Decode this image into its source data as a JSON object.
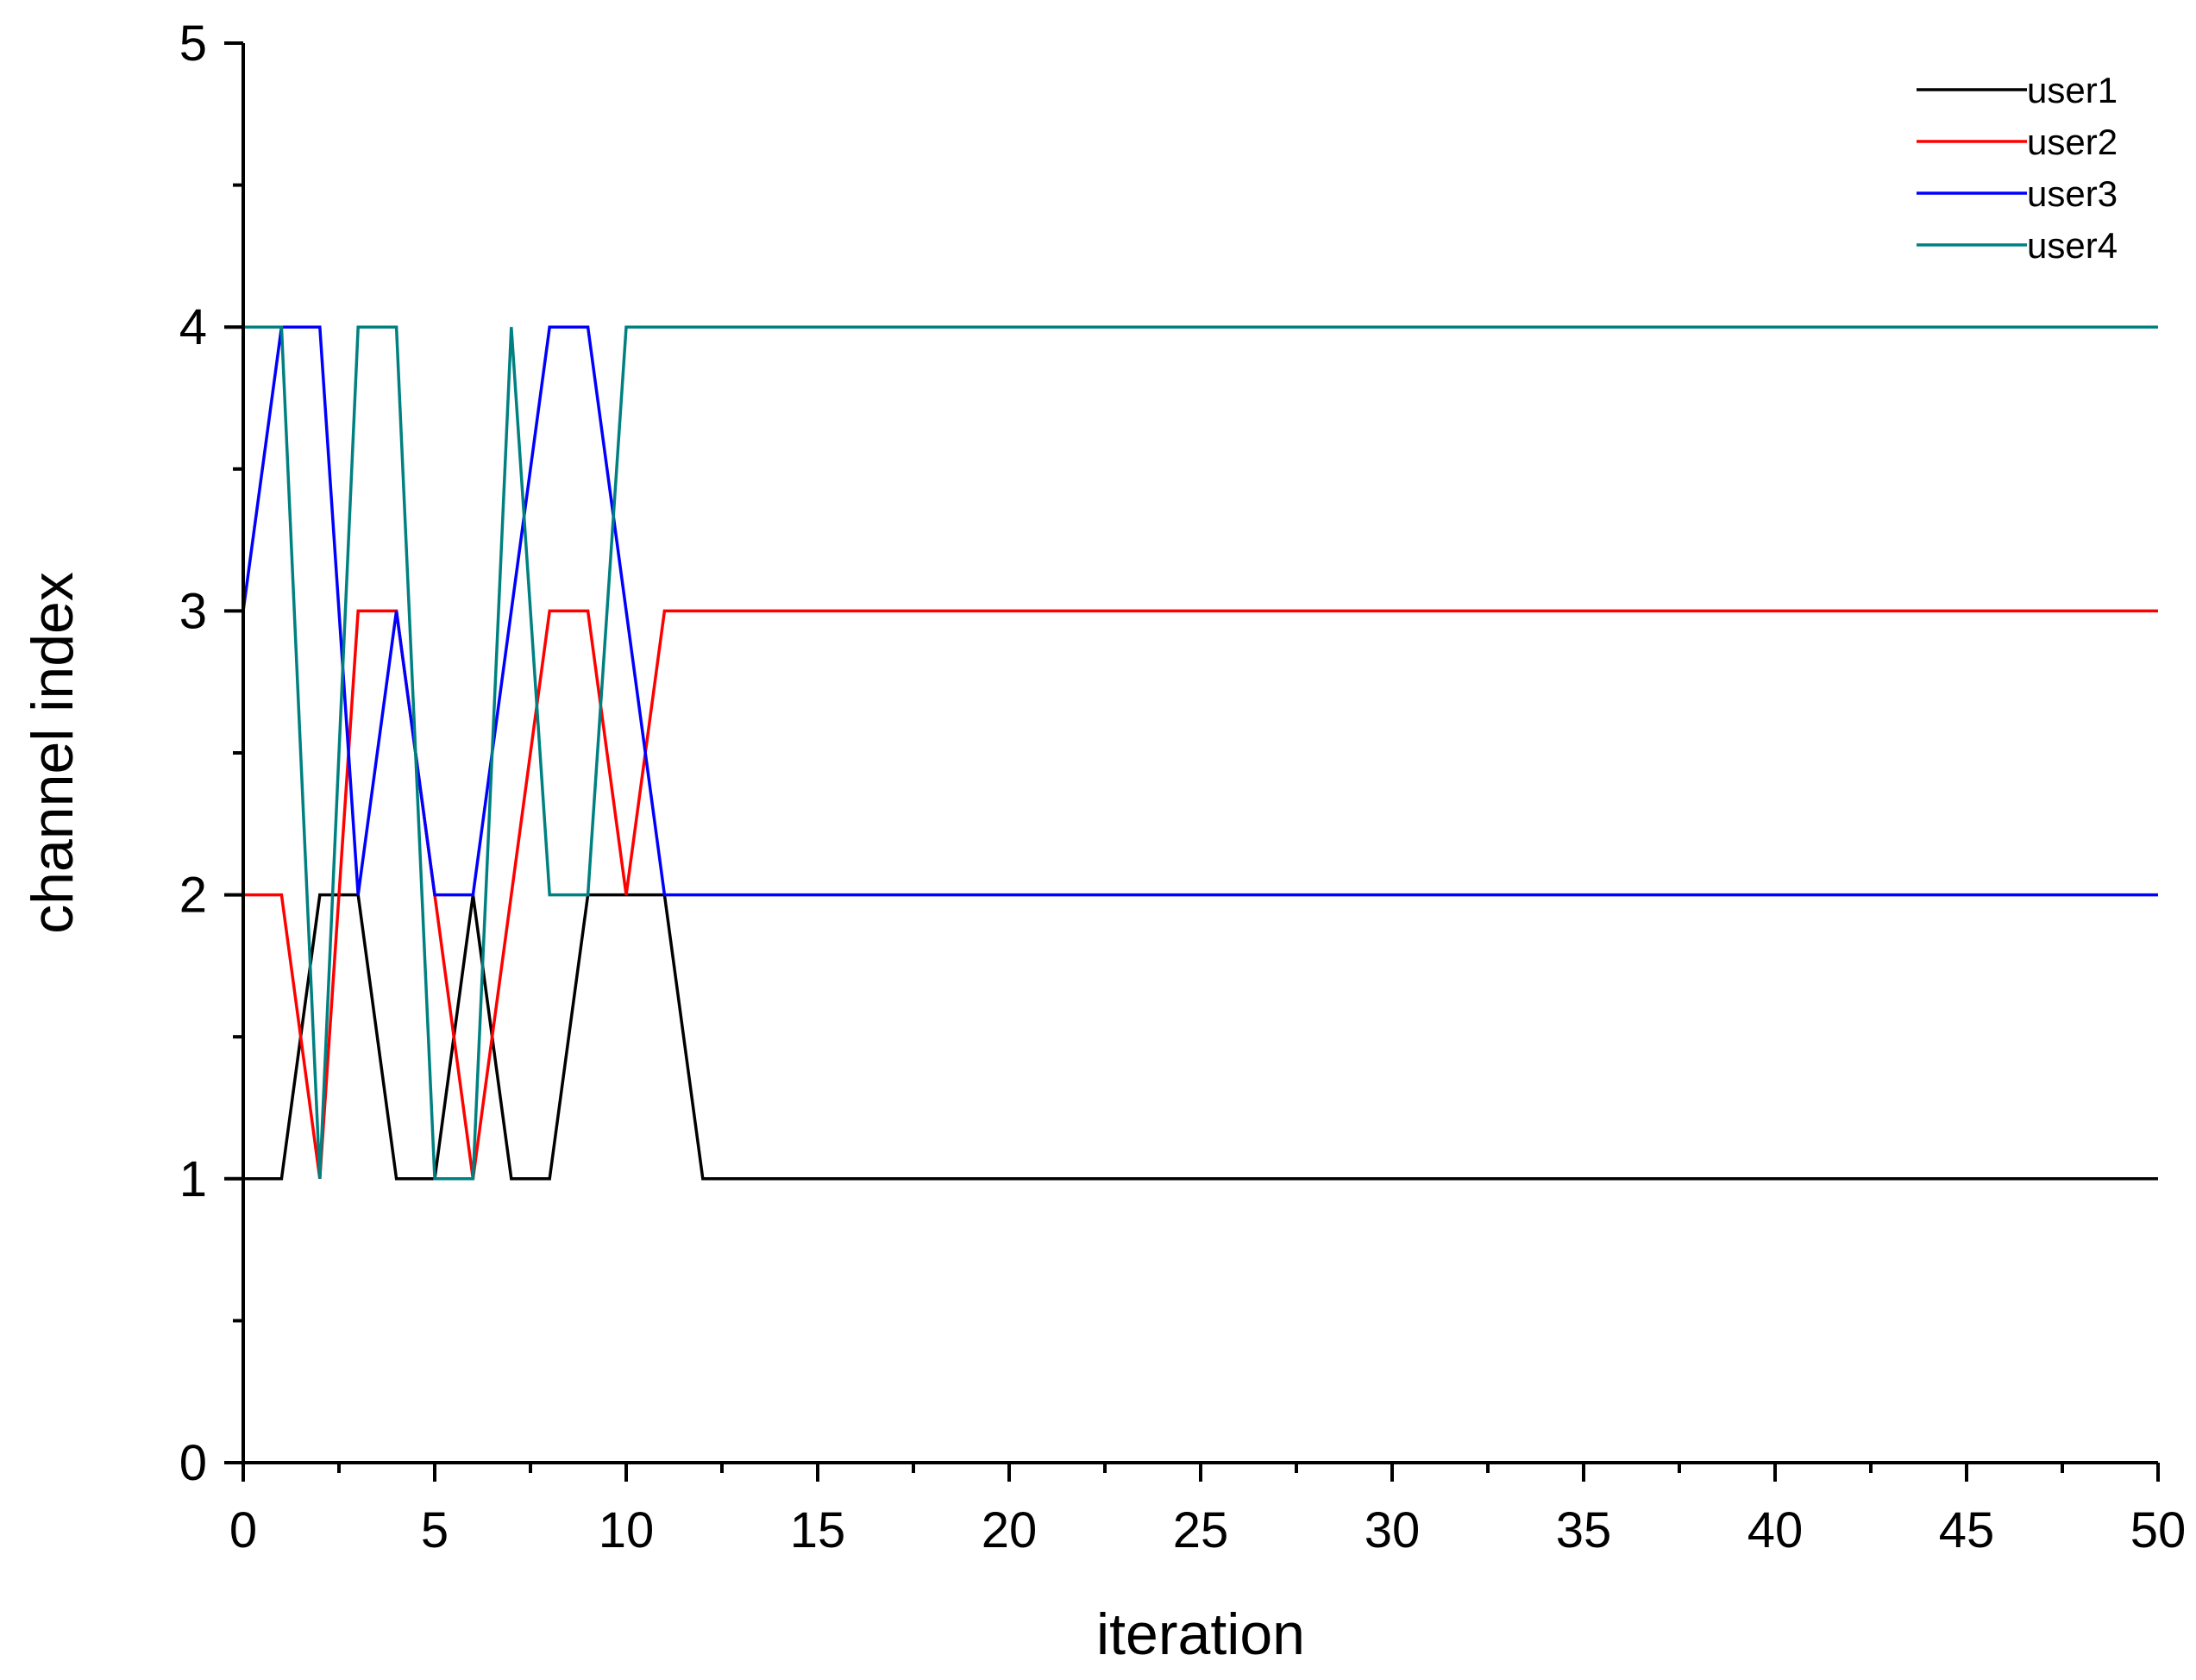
{
  "chart_data": {
    "type": "line",
    "xlabel": "iteration",
    "ylabel": "channel index",
    "xlim": [
      0,
      50
    ],
    "ylim": [
      0,
      5
    ],
    "x_ticks": [
      0,
      5,
      10,
      15,
      20,
      25,
      30,
      35,
      40,
      45,
      50
    ],
    "x_minor_step": 2.5,
    "y_ticks": [
      0,
      1,
      2,
      3,
      4,
      5
    ],
    "y_minor_step": 0.5,
    "grid": false,
    "legend_position": "top-right",
    "series": [
      {
        "name": "user1",
        "color": "#000000",
        "x": [
          0,
          1,
          2,
          3,
          4,
          5,
          6,
          7,
          8,
          9,
          10,
          11,
          12,
          50
        ],
        "y": [
          1,
          1,
          2,
          2,
          1,
          1,
          2,
          1,
          1,
          2,
          2,
          2,
          1,
          1
        ]
      },
      {
        "name": "user2",
        "color": "#ff0000",
        "x": [
          0,
          1,
          2,
          3,
          4,
          5,
          6,
          7,
          8,
          9,
          10,
          11,
          50
        ],
        "y": [
          2,
          2,
          1,
          3,
          3,
          2,
          1,
          2,
          3,
          3,
          2,
          3,
          3
        ]
      },
      {
        "name": "user3",
        "color": "#0000ff",
        "x": [
          0,
          1,
          2,
          3,
          4,
          5,
          6,
          7,
          8,
          9,
          10,
          11,
          50
        ],
        "y": [
          3,
          4,
          4,
          2,
          3,
          2,
          2,
          3,
          4,
          4,
          3,
          2,
          2
        ]
      },
      {
        "name": "user4",
        "color": "#008080",
        "x": [
          0,
          1,
          2,
          3,
          4,
          5,
          6,
          7,
          8,
          9,
          10,
          50
        ],
        "y": [
          4,
          4,
          1,
          4,
          4,
          1,
          1,
          4,
          2,
          2,
          4,
          4
        ]
      }
    ]
  }
}
